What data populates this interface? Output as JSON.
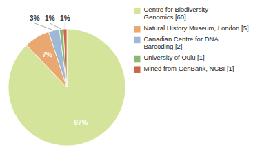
{
  "chart_data": {
    "type": "pie",
    "categories": [
      "Centre for Biodiversity\nGenomics [60]",
      "Natural History Museum, London [5]",
      "Canadian Centre for DNA\nBarcoding [2]",
      "University of Oulu [1]",
      "Mined from GenBank, NCBI [1]"
    ],
    "values": [
      87,
      7,
      3,
      1,
      1
    ],
    "value_labels": [
      "87%",
      "7%",
      "3%",
      "1%",
      "1%"
    ],
    "colors": [
      "#d4e49a",
      "#e8a870",
      "#a0b8d8",
      "#8ab870",
      "#cc6644"
    ],
    "data_labels": true,
    "legend": "right"
  }
}
